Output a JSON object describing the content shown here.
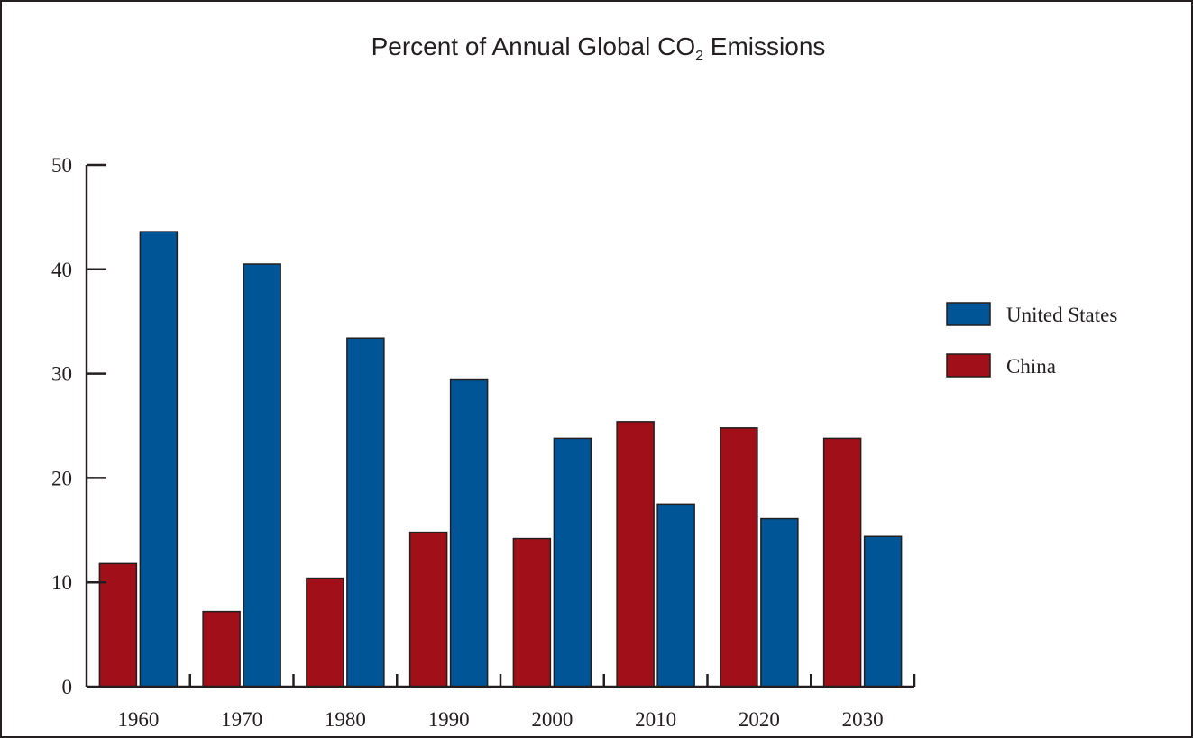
{
  "chart_data": {
    "type": "bar",
    "title_main": "Percent of Annual Global CO",
    "title_sub": "2",
    "title_end": " Emissions",
    "xlabel": "",
    "ylabel": "",
    "categories": [
      "1960",
      "1970",
      "1980",
      "1990",
      "2000",
      "2010",
      "2020",
      "2030"
    ],
    "series": [
      {
        "name": "China",
        "color": "#a10f18",
        "values": [
          11.8,
          7.2,
          10.4,
          14.8,
          14.2,
          25.4,
          24.8,
          23.8
        ]
      },
      {
        "name": "United States",
        "color": "#005596",
        "values": [
          43.6,
          40.5,
          33.4,
          29.4,
          23.8,
          17.5,
          16.1,
          14.4
        ]
      }
    ],
    "ylim": [
      0,
      50
    ],
    "yticks": [
      "0",
      "10",
      "20",
      "30",
      "40",
      "50"
    ],
    "legend": {
      "placement": "right",
      "order": [
        "United States",
        "China"
      ]
    },
    "grid": false
  }
}
